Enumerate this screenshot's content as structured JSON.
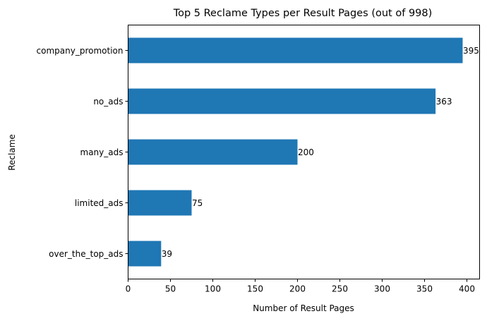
{
  "chart_data": {
    "type": "bar",
    "orientation": "horizontal",
    "title": "Top 5 Reclame Types per Result Pages (out of 998)",
    "xlabel": "Number of Result Pages",
    "ylabel": "Reclame",
    "categories": [
      "company_promotion",
      "no_ads",
      "many_ads",
      "limited_ads",
      "over_the_top_ads"
    ],
    "values": [
      395,
      363,
      200,
      75,
      39
    ],
    "data_labels": [
      "395",
      "363",
      "200",
      "75",
      "39"
    ],
    "xlim": [
      0,
      415
    ],
    "xticks": [
      0,
      50,
      100,
      150,
      200,
      250,
      300,
      350,
      400
    ],
    "grid": false,
    "bar_color": "#1f77b4"
  }
}
